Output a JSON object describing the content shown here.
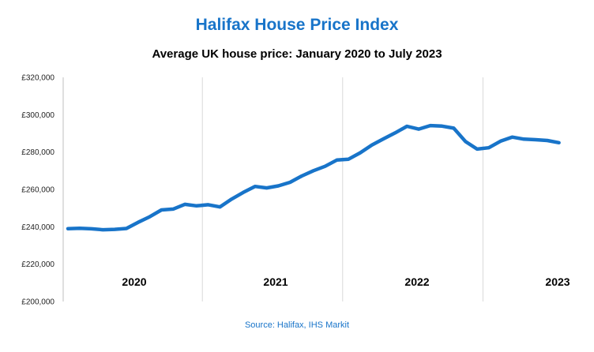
{
  "colors": {
    "accent": "#1874c9",
    "gridline": "#d9d9d9",
    "axis": "#bfbfbf"
  },
  "header": {
    "title": "Halifax House Price Index",
    "subtitle": "Average UK house price: January 2020 to July 2023"
  },
  "footer": {
    "source": "Source: Halifax, IHS Markit"
  },
  "chart_data": {
    "type": "line",
    "title": "Halifax House Price Index",
    "subtitle": "Average UK house price: January 2020 to July 2023",
    "xlabel": "",
    "ylabel": "",
    "ylim": [
      200000,
      320000
    ],
    "y_ticks": [
      {
        "value": 200000,
        "label": "£200,000"
      },
      {
        "value": 220000,
        "label": "£220,000"
      },
      {
        "value": 240000,
        "label": "£240,000"
      },
      {
        "value": 260000,
        "label": "£260,000"
      },
      {
        "value": 280000,
        "label": "£280,000"
      },
      {
        "value": 300000,
        "label": "£300,000"
      },
      {
        "value": 320000,
        "label": "£320,000"
      }
    ],
    "year_labels": [
      "2020",
      "2021",
      "2022",
      "2023"
    ],
    "grid": "vertical year separators",
    "legend": "none",
    "x": [
      "Jan 2020",
      "Feb 2020",
      "Mar 2020",
      "Apr 2020",
      "May 2020",
      "Jun 2020",
      "Jul 2020",
      "Aug 2020",
      "Sep 2020",
      "Oct 2020",
      "Nov 2020",
      "Dec 2020",
      "Jan 2021",
      "Feb 2021",
      "Mar 2021",
      "Apr 2021",
      "May 2021",
      "Jun 2021",
      "Jul 2021",
      "Aug 2021",
      "Sep 2021",
      "Oct 2021",
      "Nov 2021",
      "Dec 2021",
      "Jan 2022",
      "Feb 2022",
      "Mar 2022",
      "Apr 2022",
      "May 2022",
      "Jun 2022",
      "Jul 2022",
      "Aug 2022",
      "Sep 2022",
      "Oct 2022",
      "Nov 2022",
      "Dec 2022",
      "Jan 2023",
      "Feb 2023",
      "Mar 2023",
      "Apr 2023",
      "May 2023",
      "Jun 2023",
      "Jul 2023"
    ],
    "series": [
      {
        "color": "#1874c9",
        "values": [
          239000,
          239200,
          238900,
          238400,
          238600,
          239100,
          242400,
          245400,
          249000,
          249500,
          252000,
          251200,
          251800,
          250600,
          254800,
          258400,
          261600,
          260800,
          261900,
          263800,
          267200,
          270000,
          272400,
          275700,
          276200,
          279600,
          283800,
          287100,
          290300,
          293800,
          292300,
          294200,
          293900,
          292800,
          285700,
          281600,
          282300,
          285800,
          288000,
          286900,
          286600,
          286200,
          285000
        ]
      }
    ]
  }
}
